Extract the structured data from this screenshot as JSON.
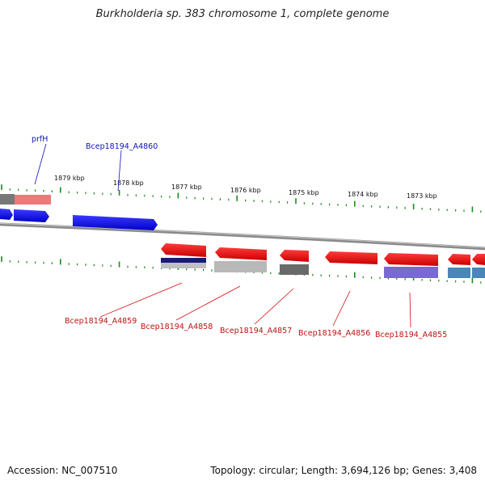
{
  "title": "Burkholderia sp. 383 chromosome 1, complete genome",
  "footer": {
    "accession": "Accession: NC_007510",
    "summary": "Topology: circular; Length: 3,694,126 bp; Genes: 3,408"
  },
  "ticks": [
    "1879 kbp",
    "1878 kbp",
    "1877 kbp",
    "1876 kbp",
    "1875 kbp",
    "1874 kbp",
    "1873 kbp"
  ],
  "labels_top": [
    "prfH",
    "Bcep18194_A4860"
  ],
  "labels_bottom": [
    "Bcep18194_A4859",
    "Bcep18194_A4858",
    "Bcep18194_A4857",
    "Bcep18194_A4856",
    "Bcep18194_A4855"
  ],
  "colors": {
    "forward_gene": "#1010e0",
    "reverse_gene": "#e81818",
    "tick": "#1a8a1a",
    "backbone": "#8a8a8a",
    "label_forward": "#1010c0",
    "label_reverse": "#c01010"
  }
}
